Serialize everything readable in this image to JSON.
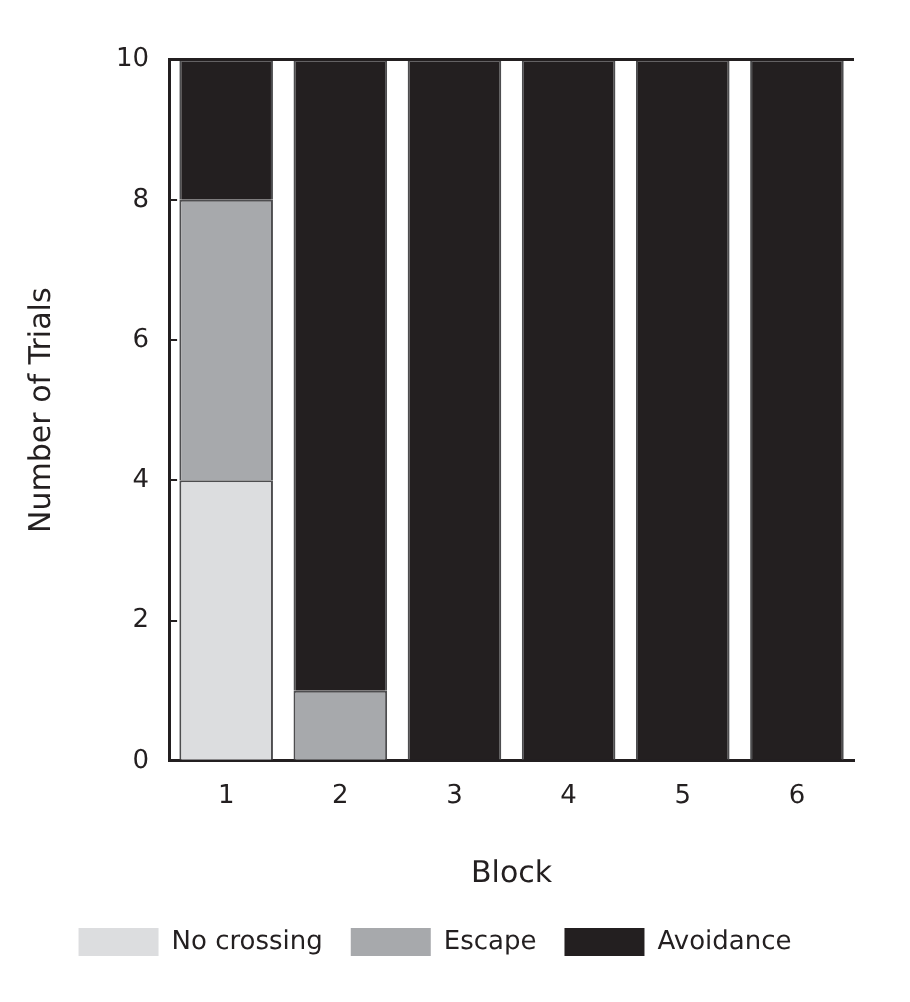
{
  "chart_data": {
    "type": "bar",
    "stacked": true,
    "xlabel": "Block",
    "ylabel": "Number of Trials",
    "categories": [
      "1",
      "2",
      "3",
      "4",
      "5",
      "6"
    ],
    "series": [
      {
        "name": "No crossing",
        "color": "#dcdddf",
        "values": [
          4,
          0,
          0,
          0,
          0,
          0
        ]
      },
      {
        "name": "Escape",
        "color": "#a7a9ac",
        "values": [
          4,
          1,
          0,
          0,
          0,
          0
        ]
      },
      {
        "name": "Avoidance",
        "color": "#231f20",
        "values": [
          2,
          9,
          10,
          10,
          10,
          10
        ]
      }
    ],
    "ylim": [
      0,
      10
    ],
    "yticks": [
      0,
      2,
      4,
      6,
      8,
      10
    ],
    "grid": false,
    "legend": "bottom"
  }
}
